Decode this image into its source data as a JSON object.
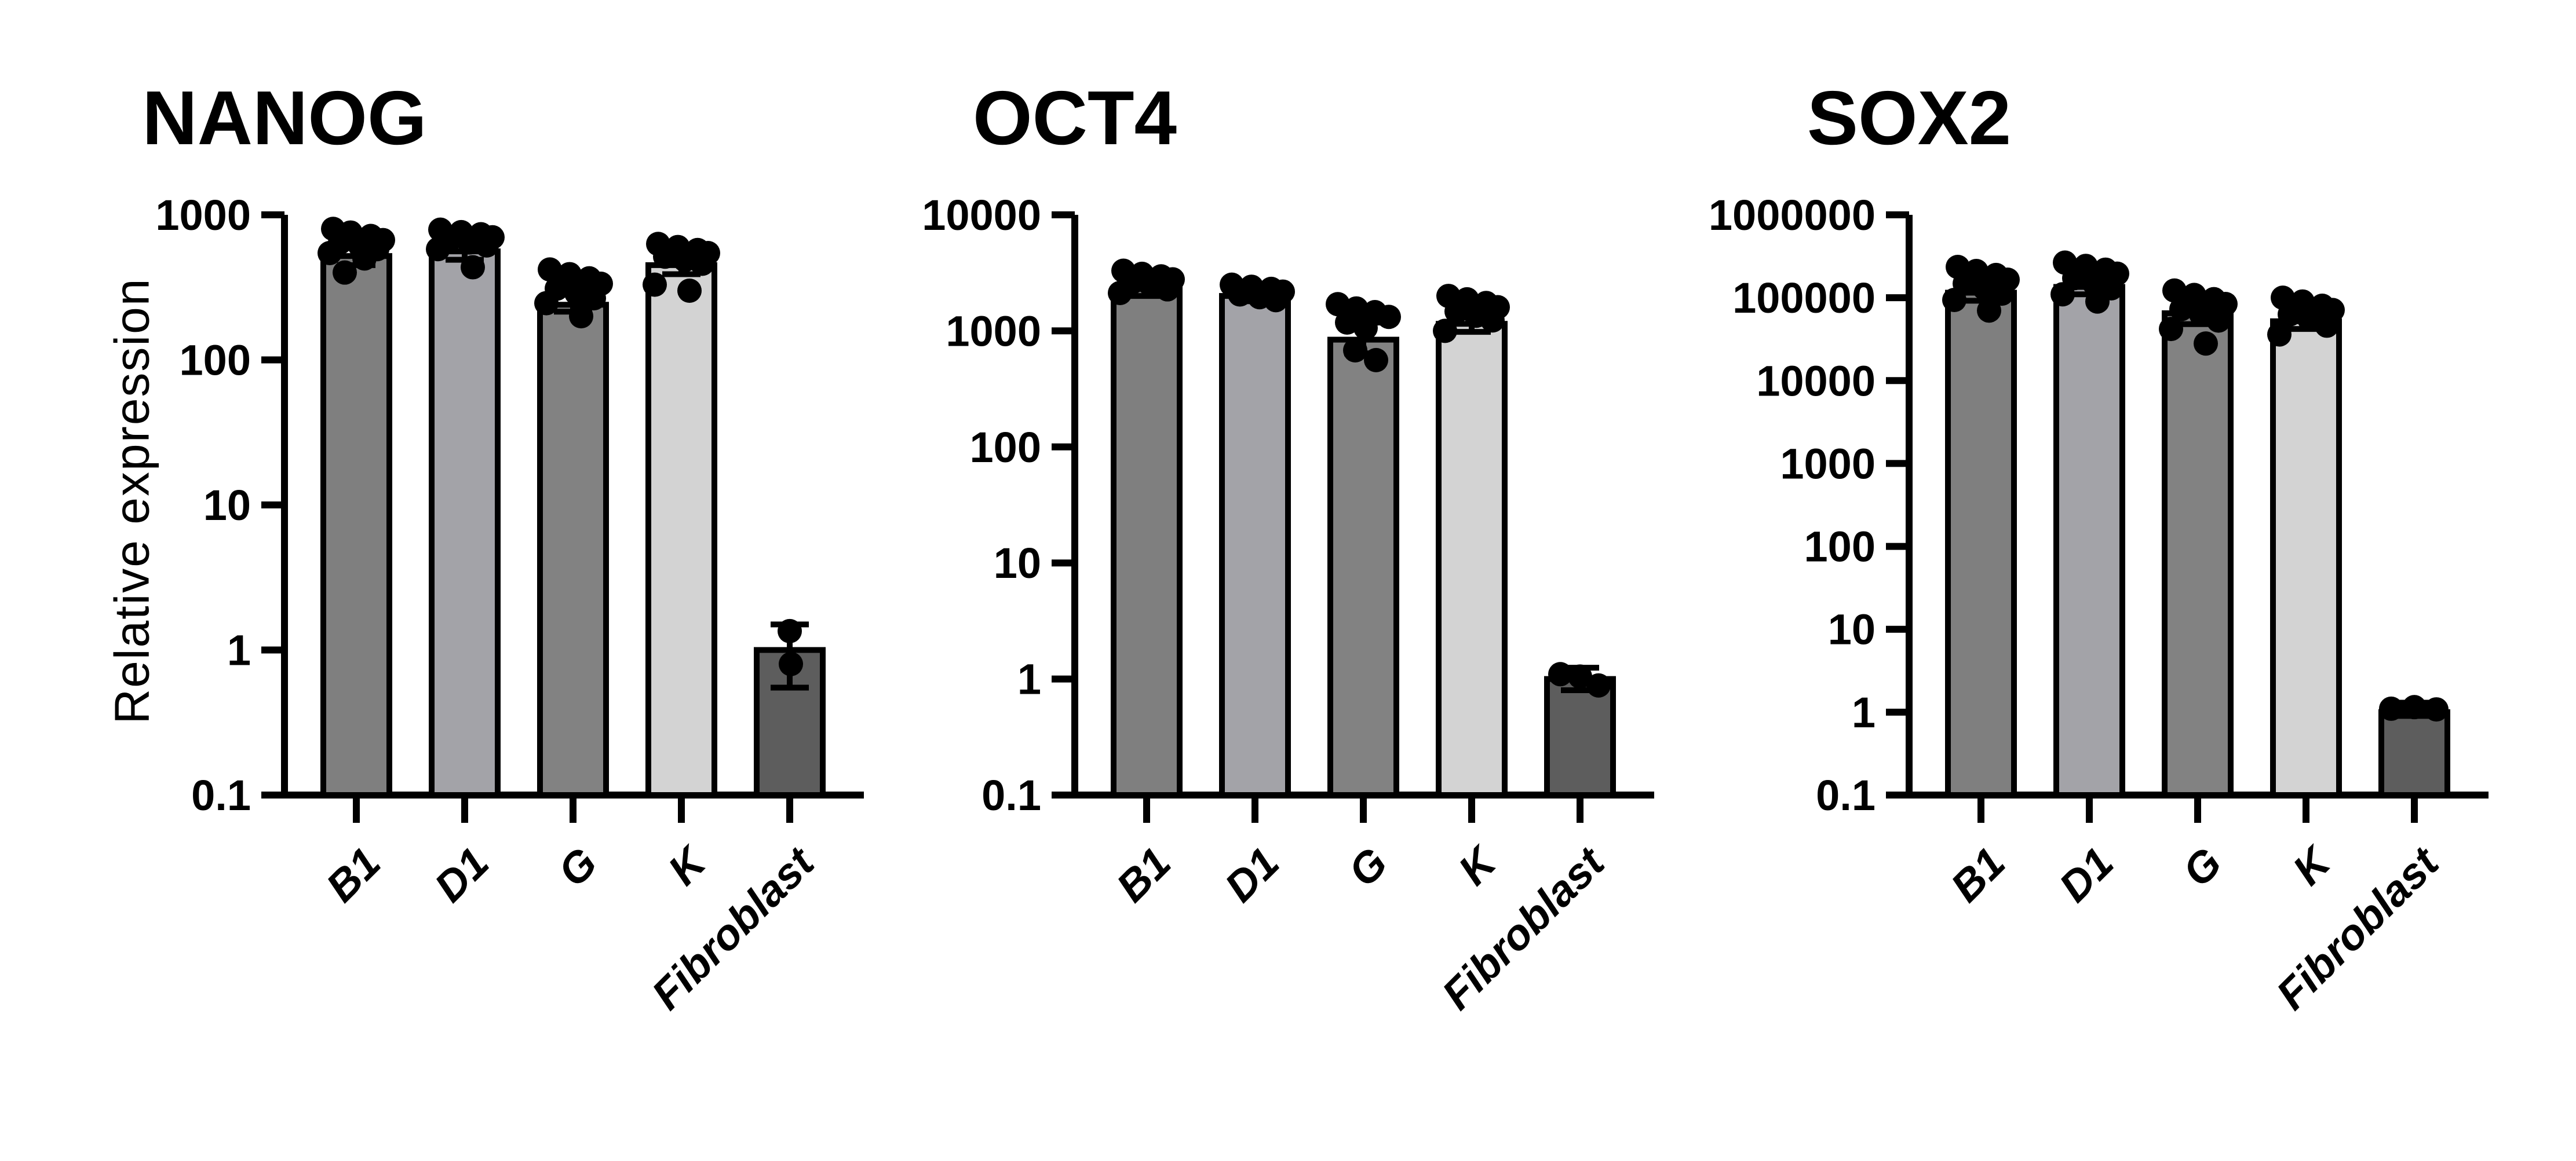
{
  "figure": {
    "y_axis_label": "Relative expression",
    "background_color": "#ffffff",
    "axis_color": "#000000",
    "dot_color": "#000000",
    "bar_outline_color": "#000000"
  },
  "chart_data": [
    {
      "type": "bar",
      "title": "NANOG",
      "ylabel": "Relative expression",
      "scale": "log10",
      "ylim": [
        0.1,
        1000
      ],
      "yticks": [
        "1000",
        "100",
        "10",
        "1",
        "0.1"
      ],
      "grid": false,
      "legend": "none",
      "categories": [
        "B1",
        "D1",
        "G",
        "K",
        "Fibroblast"
      ],
      "series": [
        {
          "category": "B1",
          "color": "#7f7f7f",
          "bar": 520,
          "error": [
            450,
            640
          ],
          "points": [
            [
              -40,
              800
            ],
            [
              -10,
              755
            ],
            [
              25,
              715
            ],
            [
              46,
              670
            ],
            [
              -28,
              645
            ],
            [
              6,
              615
            ],
            [
              36,
              580
            ],
            [
              -46,
              545
            ],
            [
              14,
              500
            ],
            [
              -20,
              400
            ]
          ]
        },
        {
          "category": "D1",
          "color": "#a3a3a8",
          "bar": 560,
          "error": [
            490,
            680
          ],
          "points": [
            [
              -42,
              790
            ],
            [
              -6,
              760
            ],
            [
              28,
              735
            ],
            [
              48,
              700
            ],
            [
              -26,
              670
            ],
            [
              8,
              645
            ],
            [
              38,
              615
            ],
            [
              -46,
              580
            ],
            [
              14,
              435
            ]
          ]
        },
        {
          "category": "G",
          "color": "#828282",
          "bar": 240,
          "error": [
            215,
            300
          ],
          "points": [
            [
              -40,
              420
            ],
            [
              -6,
              390
            ],
            [
              28,
              365
            ],
            [
              48,
              335
            ],
            [
              -28,
              310
            ],
            [
              6,
              288
            ],
            [
              36,
              266
            ],
            [
              -46,
              246
            ],
            [
              14,
              200
            ]
          ]
        },
        {
          "category": "K",
          "color": "#d3d3d3",
          "bar": 450,
          "error": [
            390,
            545
          ],
          "points": [
            [
              -40,
              630
            ],
            [
              -6,
              600
            ],
            [
              28,
              572
            ],
            [
              46,
              545
            ],
            [
              -28,
              515
            ],
            [
              6,
              488
            ],
            [
              36,
              460
            ],
            [
              -46,
              330
            ],
            [
              14,
              300
            ]
          ]
        },
        {
          "category": "Fibroblast",
          "color": "#5d5d5d",
          "bar": 1.0,
          "error": [
            0.55,
            1.5
          ],
          "points": [
            [
              0,
              1.35
            ],
            [
              2,
              0.8
            ]
          ]
        }
      ]
    },
    {
      "type": "bar",
      "title": "OCT4",
      "ylabel": "Relative expression",
      "scale": "log10",
      "ylim": [
        0.1,
        10000
      ],
      "yticks": [
        "10000",
        "1000",
        "100",
        "10",
        "1",
        "0.1"
      ],
      "grid": false,
      "legend": "none",
      "categories": [
        "B1",
        "D1",
        "G",
        "K",
        "Fibroblast"
      ],
      "series": [
        {
          "category": "B1",
          "color": "#7f7f7f",
          "bar": 2300,
          "error": [
            2000,
            2800
          ],
          "points": [
            [
              -40,
              3300
            ],
            [
              -8,
              3100
            ],
            [
              25,
              2950
            ],
            [
              45,
              2780
            ],
            [
              -26,
              2600
            ],
            [
              8,
              2450
            ],
            [
              36,
              2280
            ],
            [
              -46,
              2120
            ]
          ]
        },
        {
          "category": "D1",
          "color": "#a3a3a8",
          "bar": 2000,
          "error": [
            1800,
            2350
          ],
          "points": [
            [
              -40,
              2500
            ],
            [
              -6,
              2400
            ],
            [
              28,
              2300
            ],
            [
              48,
              2180
            ],
            [
              -26,
              2060
            ],
            [
              8,
              1950
            ],
            [
              36,
              1840
            ]
          ]
        },
        {
          "category": "G",
          "color": "#828282",
          "bar": 840,
          "error": [
            640,
            1180
          ],
          "points": [
            [
              -44,
              1700
            ],
            [
              -12,
              1560
            ],
            [
              20,
              1450
            ],
            [
              44,
              1320
            ],
            [
              -28,
              1180
            ],
            [
              4,
              1060
            ],
            [
              -14,
              680
            ],
            [
              22,
              560
            ]
          ]
        },
        {
          "category": "K",
          "color": "#d3d3d3",
          "bar": 1150,
          "error": [
            980,
            1450
          ],
          "points": [
            [
              -40,
              2000
            ],
            [
              -8,
              1870
            ],
            [
              25,
              1740
            ],
            [
              45,
              1600
            ],
            [
              -26,
              1470
            ],
            [
              8,
              1350
            ],
            [
              36,
              1230
            ],
            [
              -46,
              1000
            ]
          ]
        },
        {
          "category": "Fibroblast",
          "color": "#5d5d5d",
          "bar": 1.0,
          "error": [
            0.8,
            1.25
          ],
          "points": [
            [
              -34,
              1.1
            ],
            [
              0,
              1.05
            ],
            [
              32,
              0.88
            ]
          ]
        }
      ]
    },
    {
      "type": "bar",
      "title": "SOX2",
      "ylabel": "Relative expression",
      "scale": "log10",
      "ylim": [
        0.1,
        1000000
      ],
      "yticks": [
        "1000000",
        "100000",
        "10000",
        "1000",
        "100",
        "10",
        "1",
        "0.1"
      ],
      "grid": false,
      "legend": "none",
      "categories": [
        "B1",
        "D1",
        "G",
        "K",
        "Fibroblast"
      ],
      "series": [
        {
          "category": "B1",
          "color": "#7f7f7f",
          "bar": 115000,
          "error": [
            92000,
            152000
          ],
          "points": [
            [
              -40,
              235000
            ],
            [
              -8,
              210000
            ],
            [
              26,
              188000
            ],
            [
              46,
              165000
            ],
            [
              -28,
              148000
            ],
            [
              6,
              130000
            ],
            [
              36,
              112000
            ],
            [
              -46,
              94000
            ],
            [
              14,
              70000
            ]
          ]
        },
        {
          "category": "D1",
          "color": "#a3a3a8",
          "bar": 135000,
          "error": [
            110000,
            178000
          ],
          "points": [
            [
              -42,
              265000
            ],
            [
              -6,
              242000
            ],
            [
              28,
              218000
            ],
            [
              48,
              195000
            ],
            [
              -26,
              172000
            ],
            [
              8,
              150000
            ],
            [
              38,
              130000
            ],
            [
              -46,
              110000
            ],
            [
              14,
              90000
            ]
          ]
        },
        {
          "category": "G",
          "color": "#828282",
          "bar": 65000,
          "error": [
            48000,
            88000
          ],
          "points": [
            [
              -40,
              122000
            ],
            [
              -6,
              108000
            ],
            [
              28,
              96000
            ],
            [
              48,
              84000
            ],
            [
              -28,
              73000
            ],
            [
              6,
              63000
            ],
            [
              36,
              53000
            ],
            [
              -46,
              42000
            ],
            [
              14,
              28000
            ]
          ]
        },
        {
          "category": "K",
          "color": "#d3d3d3",
          "bar": 52000,
          "error": [
            42000,
            70000
          ],
          "points": [
            [
              -40,
              100000
            ],
            [
              -6,
              90000
            ],
            [
              28,
              80000
            ],
            [
              46,
              71000
            ],
            [
              -28,
              63000
            ],
            [
              6,
              55000
            ],
            [
              36,
              46000
            ],
            [
              -46,
              36000
            ]
          ]
        },
        {
          "category": "Fibroblast",
          "color": "#5d5d5d",
          "bar": 1.0,
          "error": [
            0.9,
            1.3
          ],
          "points": [
            [
              -40,
              1.1
            ],
            [
              0,
              1.15
            ],
            [
              38,
              1.08
            ]
          ]
        }
      ]
    }
  ]
}
